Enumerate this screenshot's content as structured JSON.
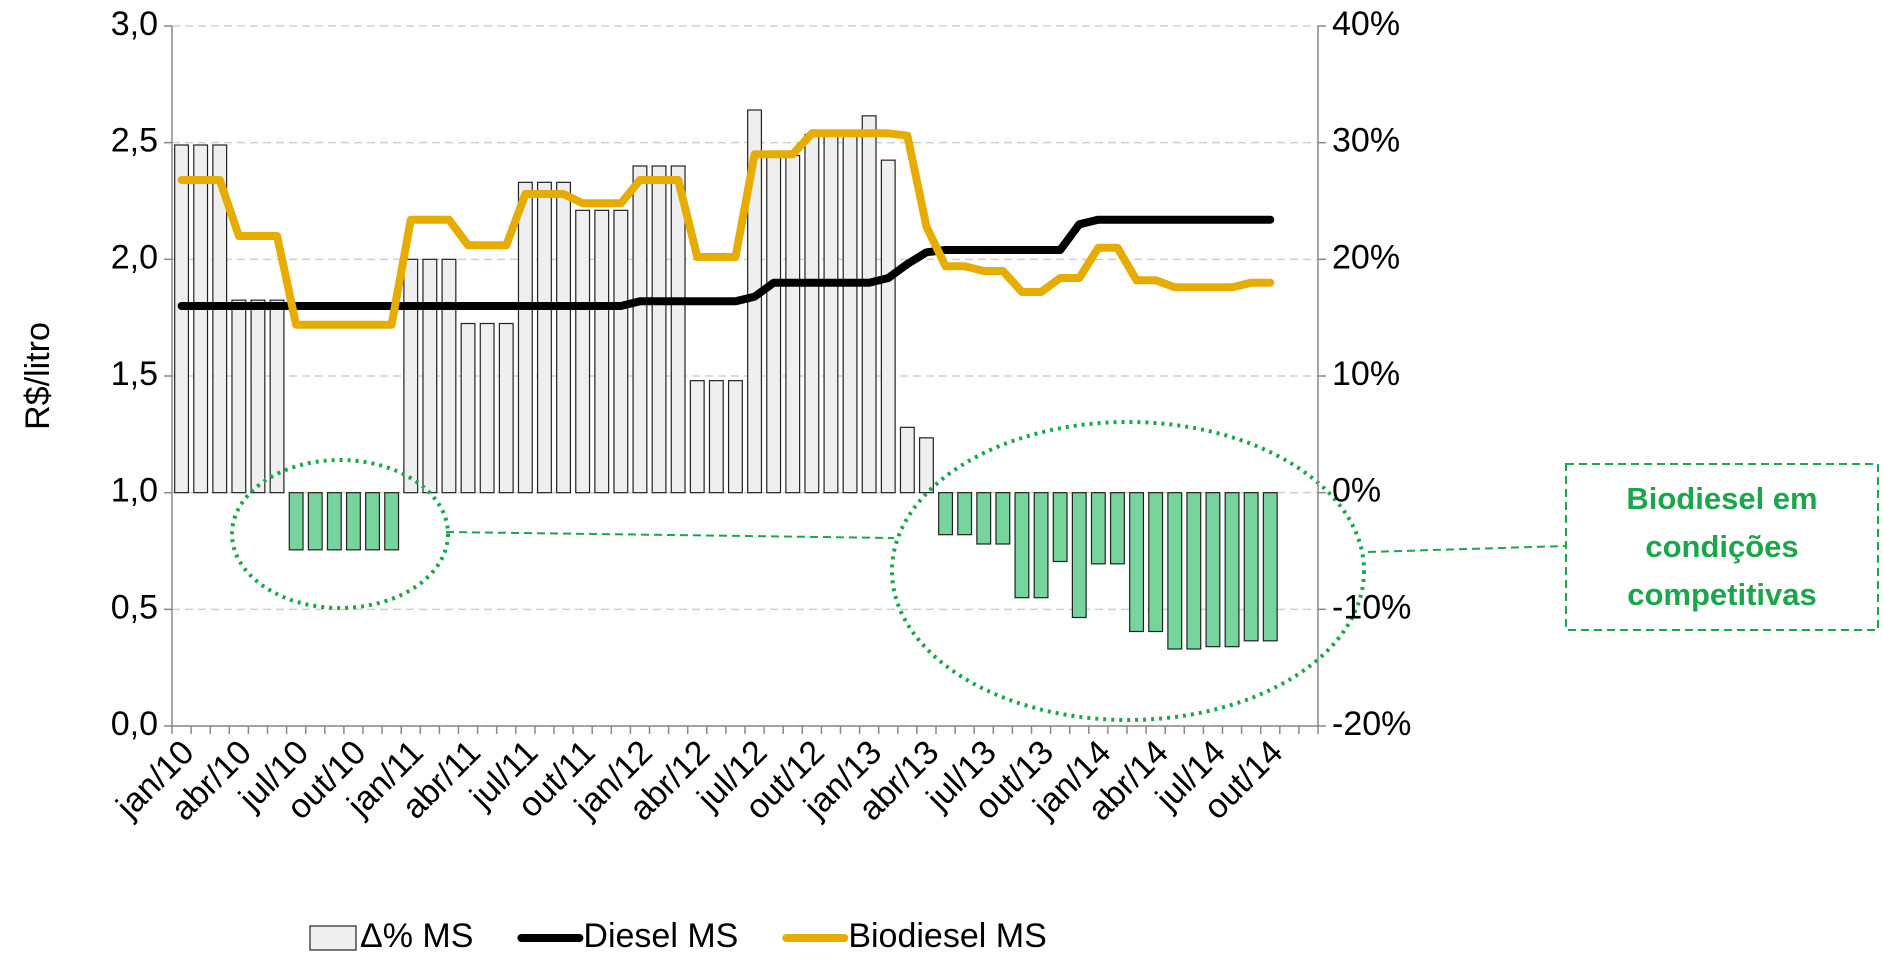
{
  "chart_data": {
    "type": "bar_line",
    "y_axis_label": "R$/litro",
    "categories": [
      "jan/10",
      null,
      null,
      "abr/10",
      null,
      null,
      "jul/10",
      null,
      null,
      "out/10",
      null,
      null,
      "jan/11",
      null,
      null,
      "abr/11",
      null,
      null,
      "jul/11",
      null,
      null,
      "out/11",
      null,
      null,
      "jan/12",
      null,
      null,
      "abr/12",
      null,
      null,
      "jul/12",
      null,
      null,
      "out/12",
      null,
      null,
      "jan/13",
      null,
      null,
      "abr/13",
      null,
      null,
      "jul/13",
      null,
      null,
      "out/13",
      null,
      null,
      "jan/14",
      null,
      null,
      "abr/14",
      null,
      null,
      "jul/14",
      null,
      null,
      "out/14",
      null,
      null
    ],
    "series": [
      {
        "name": "Δ% MS",
        "type": "bar",
        "axis": "y2",
        "color": "#efefef",
        "negative_color": "#77d49c",
        "values": [
          29.8,
          29.8,
          29.8,
          16.5,
          16.5,
          16.5,
          -4.9,
          -4.9,
          -4.9,
          -4.9,
          -4.9,
          -4.9,
          20,
          20,
          20,
          14.5,
          14.5,
          14.5,
          26.6,
          26.6,
          26.6,
          24.2,
          24.2,
          24.2,
          28,
          28,
          28,
          9.6,
          9.6,
          9.6,
          32.8,
          28.9,
          28.9,
          30.7,
          30.7,
          30.7,
          32.3,
          28.5,
          5.6,
          4.7,
          -3.6,
          -3.6,
          -4.4,
          -4.4,
          -9,
          -9,
          -5.9,
          -10.7,
          -6.1,
          -6.1,
          -11.9,
          -11.9,
          -13.4,
          -13.4,
          -13.2,
          -13.2,
          -12.7,
          -12.7,
          null,
          null
        ]
      },
      {
        "name": "Diesel MS",
        "type": "line",
        "color": "#000000",
        "values": [
          1.8,
          1.8,
          1.8,
          1.8,
          1.8,
          1.8,
          1.8,
          1.8,
          1.8,
          1.8,
          1.8,
          1.8,
          1.8,
          1.8,
          1.8,
          1.8,
          1.8,
          1.8,
          1.8,
          1.8,
          1.8,
          1.8,
          1.8,
          1.8,
          1.82,
          1.82,
          1.82,
          1.82,
          1.82,
          1.82,
          1.84,
          1.9,
          1.9,
          1.9,
          1.9,
          1.9,
          1.9,
          1.92,
          1.98,
          2.03,
          2.04,
          2.04,
          2.04,
          2.04,
          2.04,
          2.04,
          2.04,
          2.15,
          2.17,
          2.17,
          2.17,
          2.17,
          2.17,
          2.17,
          2.17,
          2.17,
          2.17,
          2.17,
          null,
          null
        ]
      },
      {
        "name": "Biodiesel MS",
        "type": "line",
        "color": "#e6ac00",
        "values": [
          2.34,
          2.34,
          2.34,
          2.1,
          2.1,
          2.1,
          1.72,
          1.72,
          1.72,
          1.72,
          1.72,
          1.72,
          2.17,
          2.17,
          2.17,
          2.06,
          2.06,
          2.06,
          2.28,
          2.28,
          2.28,
          2.24,
          2.24,
          2.24,
          2.34,
          2.34,
          2.34,
          2.01,
          2.01,
          2.01,
          2.45,
          2.45,
          2.45,
          2.54,
          2.54,
          2.54,
          2.54,
          2.54,
          2.53,
          2.14,
          1.97,
          1.97,
          1.95,
          1.95,
          1.86,
          1.86,
          1.92,
          1.92,
          2.05,
          2.05,
          1.91,
          1.91,
          1.88,
          1.88,
          1.88,
          1.88,
          1.9,
          1.9,
          null,
          null
        ]
      }
    ],
    "ylim": [
      0,
      3
    ],
    "yticks": [
      {
        "value": 0,
        "label": "0,0"
      },
      {
        "value": 0.5,
        "label": "0,5"
      },
      {
        "value": 1,
        "label": "1,0"
      },
      {
        "value": 1.5,
        "label": "1,5"
      },
      {
        "value": 2,
        "label": "2,0"
      },
      {
        "value": 2.5,
        "label": "2,5"
      },
      {
        "value": 3,
        "label": "3,0"
      }
    ],
    "y2lim": [
      -20,
      40
    ],
    "y2ticks": [
      {
        "value": -20,
        "label": "-20%"
      },
      {
        "value": -10,
        "label": "-10%"
      },
      {
        "value": 0,
        "label": "0%"
      },
      {
        "value": 10,
        "label": "10%"
      },
      {
        "value": 20,
        "label": "20%"
      },
      {
        "value": 30,
        "label": "30%"
      },
      {
        "value": 40,
        "label": "40%"
      }
    ],
    "grid": true,
    "legend": "bottom",
    "annotation": [
      "Biodiesel em",
      "condições",
      "competitivas"
    ]
  }
}
